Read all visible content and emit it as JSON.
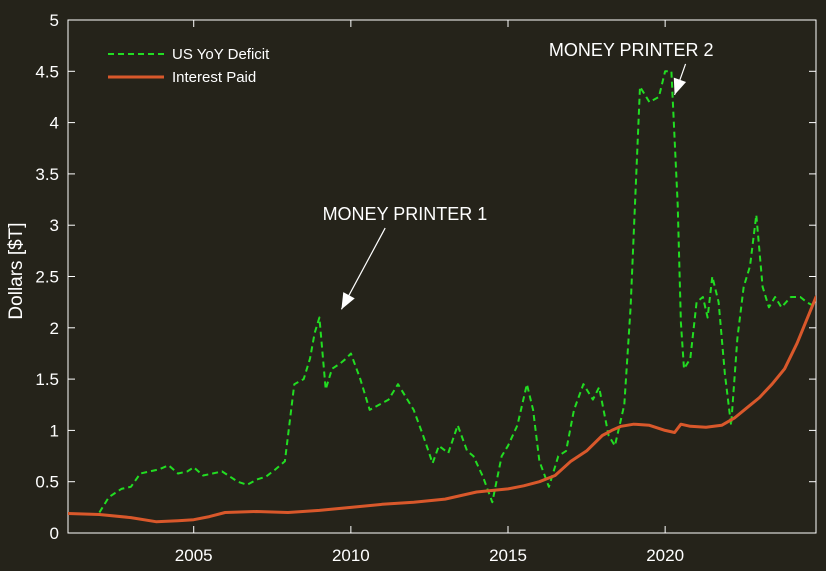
{
  "chart_data": {
    "type": "line",
    "ylabel": "Dollars [$T]",
    "xlim": [
      2001,
      2024.8
    ],
    "ylim": [
      0,
      5
    ],
    "x_ticks": [
      2005,
      2010,
      2015,
      2020
    ],
    "y_ticks": [
      0,
      0.5,
      1,
      1.5,
      2,
      2.5,
      3,
      3.5,
      4,
      4.5,
      5
    ],
    "y_tick_labels": [
      "0",
      "0.5",
      "1",
      "1.5",
      "2",
      "2.5",
      "3",
      "3.5",
      "4",
      "4.5",
      "5"
    ],
    "grid": false,
    "legend_position": "top-left",
    "series": [
      {
        "name": "US YoY Deficit",
        "color": "#22dd22",
        "style": "dashed",
        "x": [
          2002.0,
          2002.3,
          2002.7,
          2003.0,
          2003.3,
          2003.6,
          2003.9,
          2004.2,
          2004.5,
          2004.8,
          2005.0,
          2005.3,
          2005.6,
          2005.9,
          2006.1,
          2006.4,
          2006.7,
          2007.0,
          2007.3,
          2007.6,
          2007.9,
          2008.2,
          2008.5,
          2008.7,
          2008.85,
          2009.0,
          2009.2,
          2009.4,
          2009.65,
          2009.85,
          2010.0,
          2010.3,
          2010.6,
          2010.9,
          2011.2,
          2011.5,
          2011.8,
          2012.0,
          2012.3,
          2012.6,
          2012.8,
          2013.1,
          2013.4,
          2013.7,
          2013.9,
          2014.2,
          2014.5,
          2014.8,
          2015.0,
          2015.3,
          2015.6,
          2015.8,
          2016.0,
          2016.3,
          2016.6,
          2016.85,
          2017.1,
          2017.4,
          2017.7,
          2017.9,
          2018.2,
          2018.4,
          2018.7,
          2018.9,
          2019.2,
          2019.5,
          2019.8,
          2020.0,
          2020.2,
          2020.4,
          2020.5,
          2020.6,
          2020.8,
          2021.0,
          2021.2,
          2021.35,
          2021.5,
          2021.7,
          2021.9,
          2022.1,
          2022.3,
          2022.5,
          2022.7,
          2022.9,
          2023.1,
          2023.3,
          2023.5,
          2023.7,
          2024.0,
          2024.3,
          2024.5,
          2024.8
        ],
        "y": [
          0.2,
          0.35,
          0.43,
          0.45,
          0.58,
          0.6,
          0.62,
          0.66,
          0.58,
          0.6,
          0.64,
          0.56,
          0.58,
          0.6,
          0.56,
          0.5,
          0.47,
          0.52,
          0.55,
          0.62,
          0.7,
          1.45,
          1.5,
          1.7,
          1.95,
          2.1,
          1.4,
          1.6,
          1.65,
          1.7,
          1.75,
          1.5,
          1.2,
          1.25,
          1.3,
          1.45,
          1.3,
          1.2,
          0.95,
          0.68,
          0.85,
          0.78,
          1.05,
          0.8,
          0.75,
          0.55,
          0.3,
          0.75,
          0.85,
          1.05,
          1.45,
          1.2,
          0.7,
          0.45,
          0.75,
          0.8,
          1.2,
          1.45,
          1.3,
          1.42,
          0.95,
          0.85,
          1.25,
          2.2,
          4.35,
          4.2,
          4.25,
          4.5,
          4.5,
          3.2,
          2.05,
          1.6,
          1.7,
          2.25,
          2.3,
          2.1,
          2.5,
          2.25,
          1.55,
          1.05,
          1.9,
          2.4,
          2.6,
          3.1,
          2.4,
          2.2,
          2.3,
          2.2,
          2.3,
          2.3,
          2.25,
          2.2
        ],
        "linewidth": 2
      },
      {
        "name": "Interest Paid",
        "color": "#d9582b",
        "style": "solid",
        "x": [
          2001.0,
          2002.0,
          2003.0,
          2003.8,
          2004.5,
          2005.0,
          2005.5,
          2006.0,
          2007.0,
          2008.0,
          2009.0,
          2010.0,
          2011.0,
          2012.0,
          2013.0,
          2014.0,
          2015.0,
          2015.5,
          2016.0,
          2016.5,
          2017.0,
          2017.5,
          2018.0,
          2018.3,
          2018.6,
          2019.0,
          2019.5,
          2020.0,
          2020.3,
          2020.5,
          2020.8,
          2021.3,
          2021.8,
          2022.2,
          2022.6,
          2023.0,
          2023.4,
          2023.8,
          2024.2,
          2024.6,
          2024.8
        ],
        "y": [
          0.19,
          0.18,
          0.15,
          0.11,
          0.12,
          0.13,
          0.16,
          0.2,
          0.21,
          0.2,
          0.22,
          0.25,
          0.28,
          0.3,
          0.33,
          0.4,
          0.43,
          0.46,
          0.5,
          0.56,
          0.7,
          0.8,
          0.95,
          1.0,
          1.04,
          1.06,
          1.05,
          1.0,
          0.98,
          1.06,
          1.04,
          1.03,
          1.05,
          1.12,
          1.22,
          1.32,
          1.45,
          1.6,
          1.85,
          2.15,
          2.3
        ],
        "linewidth": 3
      }
    ],
    "annotations": [
      {
        "text": "MONEY PRINTER 1",
        "text_x": 2009.1,
        "text_y": 3.05,
        "arrow_to_x": 2009.7,
        "arrow_to_y": 2.18
      },
      {
        "text": "MONEY PRINTER 2",
        "text_x": 2016.3,
        "text_y": 4.65,
        "arrow_to_x": 2020.3,
        "arrow_to_y": 4.27
      }
    ]
  },
  "colors": {
    "background": "#25231a",
    "axes": "#ffffff"
  }
}
